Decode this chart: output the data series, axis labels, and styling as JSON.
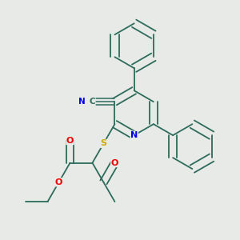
{
  "background_color": "#e8eae8",
  "bond_color": "#2d6b5a",
  "atom_colors": {
    "N": "#0000ee",
    "O": "#ee0000",
    "S": "#ccaa00",
    "C": "#2d6b5a"
  },
  "figsize": [
    3.0,
    3.0
  ],
  "dpi": 100
}
